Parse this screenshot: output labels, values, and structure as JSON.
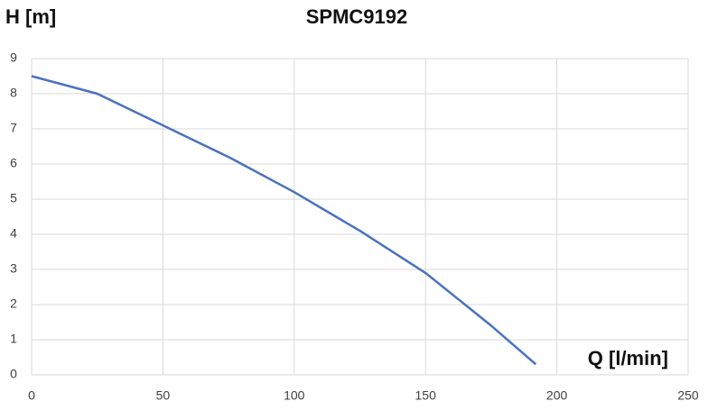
{
  "chart_data": {
    "type": "line",
    "title": "SPMC9192",
    "y_label": "H [m]",
    "x_label": "Q [l/min]",
    "x": [
      0,
      25,
      50,
      75,
      100,
      125,
      150,
      175,
      192
    ],
    "series": [
      {
        "name": "SPMC9192",
        "color": "#4a72c0",
        "values": [
          8.5,
          8.0,
          7.1,
          6.2,
          5.2,
          4.1,
          2.9,
          1.4,
          0.3
        ]
      }
    ],
    "xlim": [
      0,
      250
    ],
    "xticks": [
      0,
      50,
      100,
      150,
      200,
      250
    ],
    "ylim": [
      0,
      9
    ],
    "yticks": [
      0,
      1,
      2,
      3,
      4,
      5,
      6,
      7,
      8,
      9
    ],
    "grid": true
  }
}
